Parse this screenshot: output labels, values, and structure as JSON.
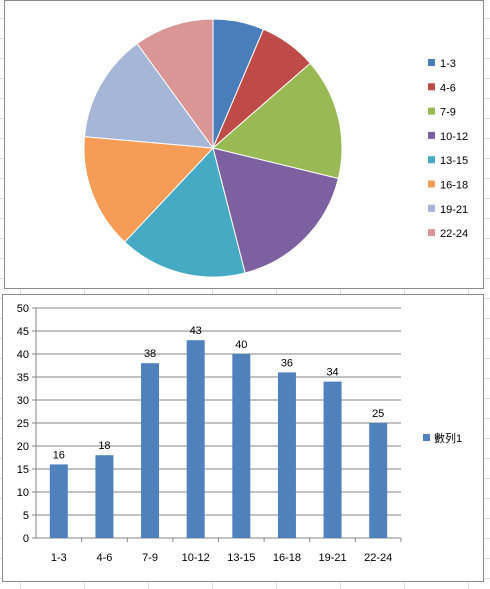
{
  "colors": {
    "pie": [
      "#4a7ebb",
      "#be4b48",
      "#98b954",
      "#7d60a0",
      "#46aac5",
      "#f59d56",
      "#a5b6d7",
      "#d99694"
    ],
    "bar": "#4f81bd",
    "axis": "#868686",
    "grid": "#868686"
  },
  "chart_data": [
    {
      "type": "pie",
      "title": "",
      "categories": [
        "1-3",
        "4-6",
        "7-9",
        "10-12",
        "13-15",
        "16-18",
        "19-21",
        "22-24"
      ],
      "values": [
        16,
        18,
        38,
        43,
        40,
        36,
        34,
        25
      ],
      "legend": "right"
    },
    {
      "type": "bar",
      "title": "",
      "categories": [
        "1-3",
        "4-6",
        "7-9",
        "10-12",
        "13-15",
        "16-18",
        "19-21",
        "22-24"
      ],
      "series": [
        {
          "name": "數列1",
          "values": [
            16,
            18,
            38,
            43,
            40,
            36,
            34,
            25
          ]
        }
      ],
      "xlabel": "",
      "ylabel": "",
      "ylim": [
        0,
        50
      ],
      "yticks": [
        0,
        5,
        10,
        15,
        20,
        25,
        30,
        35,
        40,
        45,
        50
      ],
      "grid": true,
      "data_labels": true,
      "legend": "right"
    }
  ]
}
